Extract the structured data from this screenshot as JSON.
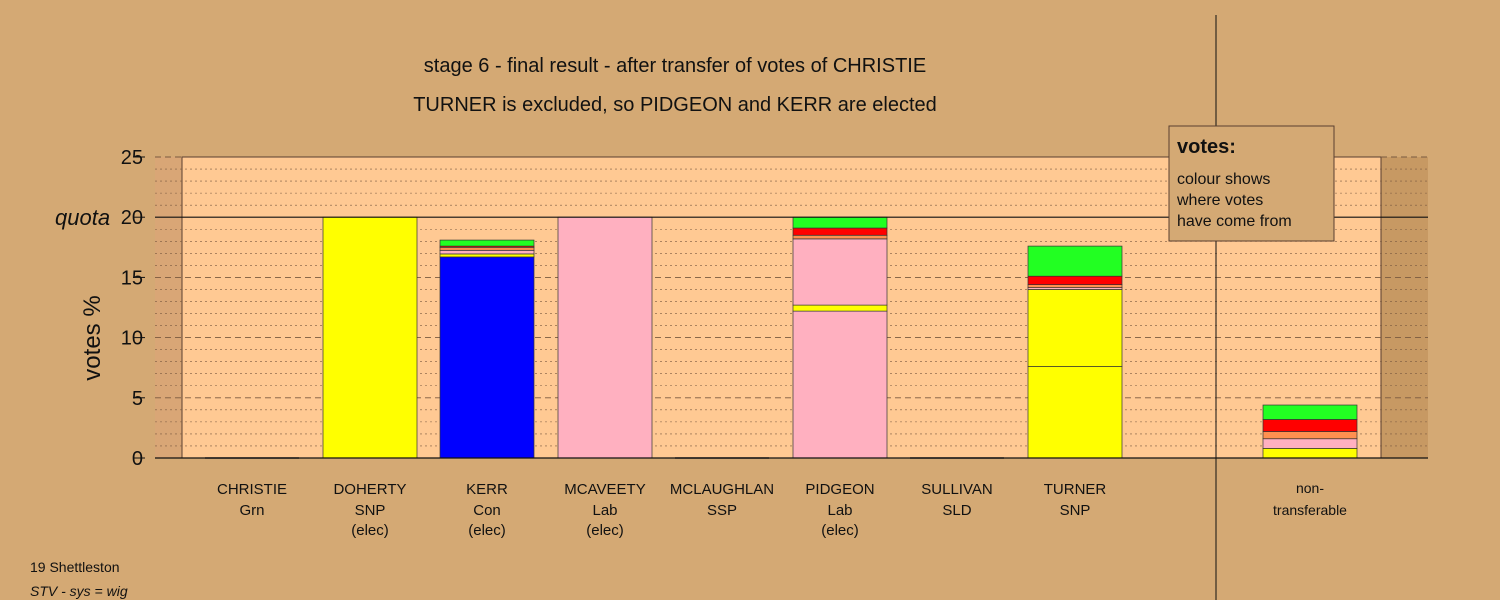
{
  "chart_data": {
    "type": "bar",
    "stacked": true,
    "title": "stage 6 - final result - after transfer of votes of CHRISTIE",
    "subtitle": "TURNER is excluded, so PIDGEON and KERR are elected",
    "ylabel": "votes %",
    "ylim": [
      0,
      25
    ],
    "yticks": [
      "0",
      "5",
      "10",
      "15",
      "20",
      "25"
    ],
    "quota": 20,
    "quota_label": "quota",
    "grid": true,
    "categories": [
      {
        "name": "CHRISTIE",
        "party": "Grn",
        "status": ""
      },
      {
        "name": "DOHERTY",
        "party": "SNP",
        "status": "(elec)"
      },
      {
        "name": "KERR",
        "party": "Con",
        "status": "(elec)"
      },
      {
        "name": "MCAVEETY",
        "party": "Lab",
        "status": "(elec)"
      },
      {
        "name": "MCLAUGHLAN",
        "party": "SSP",
        "status": ""
      },
      {
        "name": "PIDGEON",
        "party": "Lab",
        "status": "(elec)"
      },
      {
        "name": "SULLIVAN",
        "party": "SLD",
        "status": ""
      },
      {
        "name": "TURNER",
        "party": "SNP",
        "status": ""
      }
    ],
    "stacks": [
      [],
      [
        {
          "color": "#ffff00",
          "value": 20.0
        }
      ],
      [
        {
          "color": "#0000ff",
          "value": 16.7
        },
        {
          "color": "#ffff00",
          "value": 0.25
        },
        {
          "color": "#ffb0c0",
          "value": 0.3
        },
        {
          "color": "#ff9050",
          "value": 0.25
        },
        {
          "color": "#ff0000",
          "value": 0.1
        },
        {
          "color": "#22ff22",
          "value": 0.5
        }
      ],
      [
        {
          "color": "#ffb0c0",
          "value": 20.0
        }
      ],
      [],
      [
        {
          "color": "#ffb0c0",
          "value": 12.2
        },
        {
          "color": "#ffff00",
          "value": 0.5
        },
        {
          "color": "#ffb0c0",
          "value": 5.5
        },
        {
          "color": "#ff9050",
          "value": 0.3
        },
        {
          "color": "#ff0000",
          "value": 0.6
        },
        {
          "color": "#22ff22",
          "value": 0.9
        }
      ],
      [],
      [
        {
          "color": "#ffff00",
          "value": 7.6
        },
        {
          "color": "#ffff00",
          "value": 6.4
        },
        {
          "color": "#ffb0c0",
          "value": 0.15
        },
        {
          "color": "#ff9050",
          "value": 0.25
        },
        {
          "color": "#ff0000",
          "value": 0.7
        },
        {
          "color": "#22ff22",
          "value": 2.5
        }
      ]
    ],
    "nontransferable": {
      "label_line1": "non-",
      "label_line2": "transferable",
      "stack": [
        {
          "color": "#ffff00",
          "value": 0.8
        },
        {
          "color": "#ffb0c0",
          "value": 0.8
        },
        {
          "color": "#ff9050",
          "value": 0.6
        },
        {
          "color": "#ff0000",
          "value": 1.0
        },
        {
          "color": "#22ff22",
          "value": 1.2
        }
      ]
    },
    "legend": {
      "title": "votes:",
      "lines": [
        "colour shows",
        "where votes",
        "have come from"
      ],
      "position": "top-right"
    }
  },
  "footer": {
    "line1": "19 Shettleston",
    "line2": "STV - sys = wig"
  },
  "colors": {
    "background": "#d4a974",
    "panel": "#ffc993",
    "gridline": "#8a6a4a"
  }
}
